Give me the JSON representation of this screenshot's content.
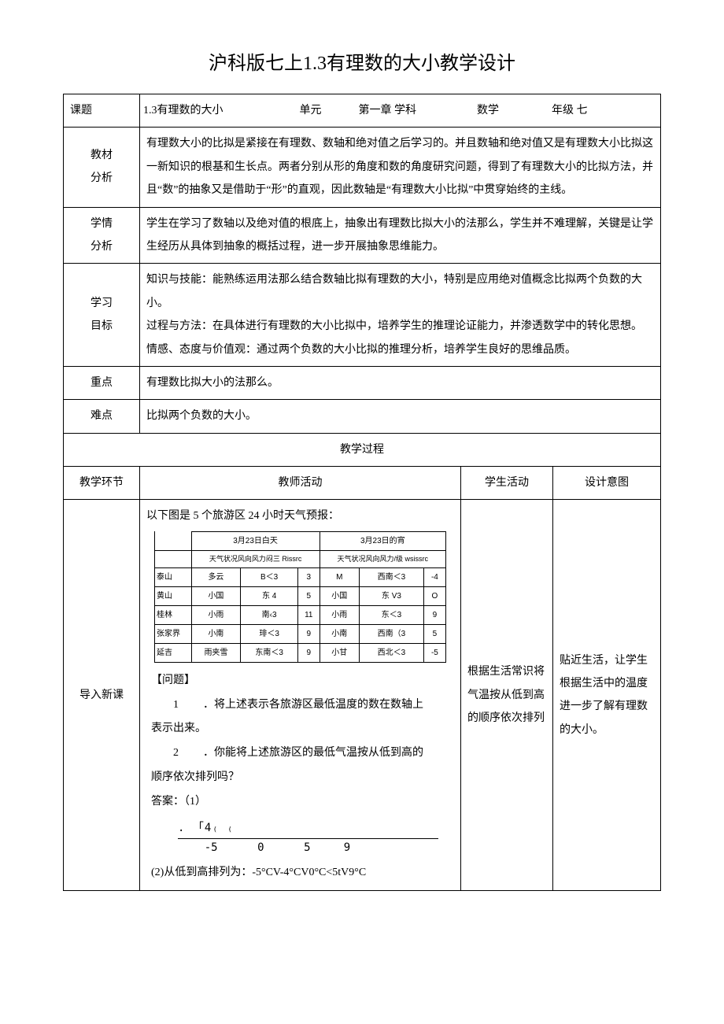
{
  "title": "沪科版七上1.3有理数的大小教学设计",
  "header": {
    "keti_label": "课题",
    "keti_value": "1.3有理数的大小",
    "danyuan_label": "单元",
    "danyuan_value": "第一章",
    "xueke_label": "学科",
    "xueke_value": "数学",
    "nianji_label": "年级",
    "nianji_value": "七"
  },
  "rows": {
    "jiaocai": {
      "label": "教材\n分析",
      "text": "有理数大小的比拟是紧接在有理数、数轴和绝对值之后学习的。并且数轴和绝对值又是有理数大小比拟这一新知识的根基和生长点。两者分别从形的角度和数的角度研究问题，得到了有理数大小的比拟方法，并且“数”的抽象又是借助于“形”的直观，因此数轴是“有理数大小比拟”中贯穿始终的主线。"
    },
    "xueqing": {
      "label": "学情\n分析",
      "text": "学生在学习了数轴以及绝对值的根底上，抽象出有理数比拟大小的法那么，学生并不难理解，关键是让学生经历从具体到抽象的概括过程，进一步开展抽象思维能力。"
    },
    "mubiao": {
      "label": "学习\n目标",
      "text": "知识与技能：能熟练运用法那么结合数轴比拟有理数的大小，特别是应用绝对值概念比拟两个负数的大小。\n过程与方法：在具体进行有理数的大小比拟中，培养学生的推理论证能力，并渗透数学中的转化思想。\n情感、态度与价值观：通过两个负数的大小比拟的推理分析，培养学生良好的思维品质。"
    },
    "zhongdian": {
      "label": "重点",
      "text": "有理数比拟大小的法那么。"
    },
    "nandian": {
      "label": "难点",
      "text": "比拟两个负数的大小。"
    }
  },
  "process_title": "教学过程",
  "sec_header": {
    "col1": "教学环节",
    "col2": "教师活动",
    "col3": "学生活动",
    "col4": "设计意图"
  },
  "intro": {
    "stage_label": "导入新课",
    "teacher_lead": "以下图是 5 个旅游区 24 小时天气预报：",
    "weather": {
      "day_header": "3月23日白天",
      "night_header": "3月23日的宵",
      "sub_day": "天气状况风向风力闷三 Rissrc",
      "sub_night": "天气状况风向风力/级 wsissrc",
      "rows": [
        {
          "loc": "泰山",
          "d_w": "多云",
          "d_wind": "B＜3",
          "d_t": "3",
          "n_w": "M",
          "n_wind": "西南＜3",
          "n_t": "-4"
        },
        {
          "loc": "黄山",
          "d_w": "小国",
          "d_wind": "东 4",
          "d_t": "5",
          "n_w": "小国",
          "n_wind": "东 V3",
          "n_t": "O"
        },
        {
          "loc": "桂林",
          "d_w": "小雨",
          "d_wind": "南‹3",
          "d_t": "11",
          "n_w": "小雨",
          "n_wind": "东＜3",
          "n_t": "9"
        },
        {
          "loc": "张家界",
          "d_w": "小南",
          "d_wind": "琲＜3",
          "d_t": "9",
          "n_w": "小南",
          "n_wind": "西南（3",
          "n_t": "5"
        },
        {
          "loc": "延吉",
          "d_w": "雨夹雪",
          "d_wind": "东南＜3",
          "d_t": "9",
          "n_w": "小甘",
          "n_wind": "西北＜3",
          "n_t": "-5"
        }
      ]
    },
    "q_title": "【问题】",
    "q1_num": "1",
    "q1_a": "．将上述表示各旅游区最低温度的数在数轴上",
    "q1_b": "表示出来。",
    "q2_num": "2",
    "q2_a": "．你能将上述旅游区的最低气温按从低到高的",
    "q2_b": "顺序依次排列吗？",
    "ans_label": "答案：（1）",
    "axis_ticks": ".        「4₍                    ₍",
    "axis_nums": "    -5      0      5     9",
    "ans2": "(2)从低到高排列为：-5°CV-4°CV0°C<5tV9°C",
    "student": "根据生活常识将气温按从低到高的顺序依次排列",
    "design": "贴近生活，让学生根据生活中的温度进一步了解有理数的大小。"
  }
}
